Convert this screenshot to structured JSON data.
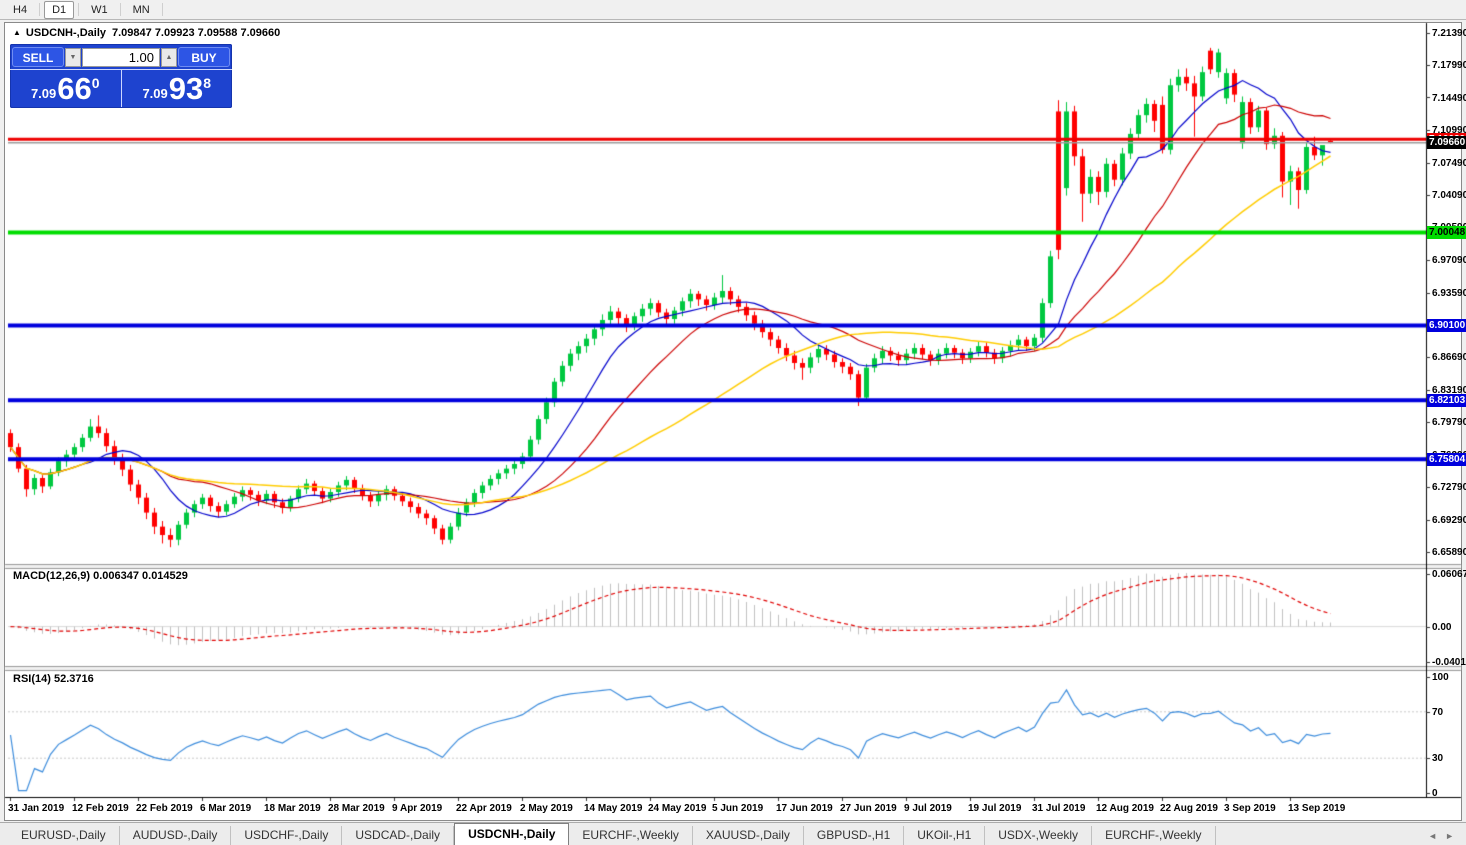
{
  "toolbar": {
    "timeframes": [
      "H4",
      "D1",
      "W1",
      "MN"
    ],
    "active": "D1"
  },
  "chart": {
    "collapse_icon": "▲",
    "title_symbol": "USDCNH-,Daily",
    "title_ohlc": "7.09847 7.09923 7.09588 7.09660"
  },
  "trade_panel": {
    "sell_label": "SELL",
    "buy_label": "BUY",
    "volume": "1.00",
    "vol_down_icon": "▼",
    "vol_up_icon": "▲",
    "sell_price": {
      "prefix": "7.09",
      "big": "66",
      "sup": "0"
    },
    "buy_price": {
      "prefix": "7.09",
      "big": "93",
      "sup": "8"
    }
  },
  "price_axis": {
    "ticks": [
      {
        "label": "7.21390",
        "price": 7.2139
      },
      {
        "label": "7.17990",
        "price": 7.1799
      },
      {
        "label": "7.14490",
        "price": 7.1449
      },
      {
        "label": "7.10990",
        "price": 7.1099
      },
      {
        "label": "7.07490",
        "price": 7.0749
      },
      {
        "label": "7.04090",
        "price": 7.0409
      },
      {
        "label": "7.00590",
        "price": 7.0059
      },
      {
        "label": "6.97090",
        "price": 6.9709
      },
      {
        "label": "6.93590",
        "price": 6.9359
      },
      {
        "label": "6.90090",
        "price": 6.9009
      },
      {
        "label": "6.86690",
        "price": 6.8669
      },
      {
        "label": "6.83190",
        "price": 6.8319
      },
      {
        "label": "6.79790",
        "price": 6.7979
      },
      {
        "label": "6.76290",
        "price": 6.7629
      },
      {
        "label": "6.72790",
        "price": 6.7279
      },
      {
        "label": "6.69290",
        "price": 6.6929
      },
      {
        "label": "6.65890",
        "price": 6.6589
      }
    ],
    "badges": [
      {
        "label": "7.10029",
        "price": 7.10029,
        "bg": "#ee0000",
        "fg": "#ffffff"
      },
      {
        "label": "7.09660",
        "price": 7.0966,
        "bg": "#000000",
        "fg": "#ffffff"
      },
      {
        "label": "7.00048",
        "price": 7.00048,
        "bg": "#00dd00",
        "fg": "#000000"
      },
      {
        "label": "6.90100",
        "price": 6.901,
        "bg": "#0000dd",
        "fg": "#ffffff"
      },
      {
        "label": "6.82103",
        "price": 6.82103,
        "bg": "#0000dd",
        "fg": "#ffffff"
      },
      {
        "label": "6.75804",
        "price": 6.75804,
        "bg": "#0000dd",
        "fg": "#ffffff"
      }
    ]
  },
  "macd_axis": {
    "items": [
      {
        "label": "0.060674",
        "value": 0.060674
      },
      {
        "label": "0.00",
        "value": 0.0
      },
      {
        "label": "-0.040152",
        "value": -0.040152
      }
    ]
  },
  "rsi_axis": {
    "items": [
      {
        "label": "100",
        "value": 100
      },
      {
        "label": "70",
        "value": 70
      },
      {
        "label": "30",
        "value": 30
      },
      {
        "label": "0",
        "value": 0
      }
    ]
  },
  "panes": {
    "macd_label": "MACD(12,26,9) 0.006347 0.014529",
    "rsi_label": "RSI(14) 52.3716"
  },
  "x_axis": {
    "labels": [
      {
        "text": "31 Jan 2019",
        "bar": 0
      },
      {
        "text": "12 Feb 2019",
        "bar": 8
      },
      {
        "text": "22 Feb 2019",
        "bar": 16
      },
      {
        "text": "6 Mar 2019",
        "bar": 24
      },
      {
        "text": "18 Mar 2019",
        "bar": 32
      },
      {
        "text": "28 Mar 2019",
        "bar": 40
      },
      {
        "text": "9 Apr 2019",
        "bar": 48
      },
      {
        "text": "22 Apr 2019",
        "bar": 56
      },
      {
        "text": "2 May 2019",
        "bar": 64
      },
      {
        "text": "14 May 2019",
        "bar": 72
      },
      {
        "text": "24 May 2019",
        "bar": 80
      },
      {
        "text": "5 Jun 2019",
        "bar": 88
      },
      {
        "text": "17 Jun 2019",
        "bar": 96
      },
      {
        "text": "27 Jun 2019",
        "bar": 104
      },
      {
        "text": "9 Jul 2019",
        "bar": 112
      },
      {
        "text": "19 Jul 2019",
        "bar": 120
      },
      {
        "text": "31 Jul 2019",
        "bar": 128
      },
      {
        "text": "12 Aug 2019",
        "bar": 136
      },
      {
        "text": "22 Aug 2019",
        "bar": 144
      },
      {
        "text": "3 Sep 2019",
        "bar": 152
      },
      {
        "text": "13 Sep 2019",
        "bar": 160
      }
    ]
  },
  "tabs": {
    "items": [
      "EURUSD-,Daily",
      "AUDUSD-,Daily",
      "USDCHF-,Daily",
      "USDCAD-,Daily",
      "USDCNH-,Daily",
      "EURCHF-,Weekly",
      "XAUUSD-,Daily",
      "GBPUSD-,H1",
      "UKOil-,H1",
      "USDX-,Weekly",
      "EURCHF-,Weekly"
    ],
    "active_index": 4,
    "nav_left": "◄",
    "nav_right": "►"
  },
  "colors": {
    "up": "#00c840",
    "down": "#ff0000",
    "bid_line": "#9c9c9c",
    "axis_line": "#000000",
    "panel_blue": "#1e43cf"
  },
  "chart_data": {
    "type": "candlestick",
    "symbol": "USDCNH",
    "timeframe": "Daily",
    "price_ylim": [
      6.6471,
      7.2235
    ],
    "macd_ylim": [
      -0.043,
      0.0651
    ],
    "rsi_ylim": [
      0,
      100
    ],
    "horizontal_lines": [
      {
        "price": 7.10029,
        "color": "#ee0000",
        "width": 3
      },
      {
        "price": 7.0966,
        "color": "#9c9c9c",
        "width": 1.5
      },
      {
        "price": 7.00048,
        "color": "#00dd00",
        "width": 4
      },
      {
        "price": 6.901,
        "color": "#0000dd",
        "width": 4
      },
      {
        "price": 6.82103,
        "color": "#0000dd",
        "width": 4
      },
      {
        "price": 6.75804,
        "color": "#0000dd",
        "width": 4
      }
    ],
    "moving_averages": [
      {
        "name": "fast",
        "period": 10,
        "color": "#0000cc",
        "lw": 1.2
      },
      {
        "name": "medium",
        "period": 20,
        "color": "#cc0000",
        "lw": 1.2
      },
      {
        "name": "slow",
        "period": 40,
        "color": "#ffcc00",
        "lw": 1.5
      }
    ],
    "macd": {
      "fast": 12,
      "slow": 26,
      "signal": 9,
      "current_macd": 0.006347,
      "current_signal": 0.014529,
      "hist_color": "#c0c0c0",
      "signal_color": "#e00000"
    },
    "rsi": {
      "period": 14,
      "current": 52.3716,
      "levels": [
        30,
        70
      ],
      "line_color": "#3c8cdc",
      "level_color": "#c8c8c8"
    },
    "candles": [
      [
        6.786,
        6.79,
        6.766,
        6.771
      ],
      [
        6.771,
        6.775,
        6.744,
        6.748
      ],
      [
        6.748,
        6.752,
        6.718,
        6.726
      ],
      [
        6.726,
        6.742,
        6.72,
        6.738
      ],
      [
        6.738,
        6.741,
        6.722,
        6.729
      ],
      [
        6.729,
        6.748,
        6.726,
        6.744
      ],
      [
        6.744,
        6.76,
        6.74,
        6.756
      ],
      [
        6.756,
        6.768,
        6.75,
        6.763
      ],
      [
        6.763,
        6.775,
        6.758,
        6.771
      ],
      [
        6.771,
        6.785,
        6.766,
        6.781
      ],
      [
        6.781,
        6.801,
        6.777,
        6.793
      ],
      [
        6.793,
        6.805,
        6.781,
        6.786
      ],
      [
        6.786,
        6.791,
        6.766,
        6.772
      ],
      [
        6.772,
        6.778,
        6.752,
        6.759
      ],
      [
        6.759,
        6.764,
        6.74,
        6.747
      ],
      [
        6.747,
        6.752,
        6.724,
        6.731
      ],
      [
        6.731,
        6.736,
        6.71,
        6.717
      ],
      [
        6.717,
        6.722,
        6.694,
        6.701
      ],
      [
        6.701,
        6.706,
        6.678,
        6.686
      ],
      [
        6.686,
        6.692,
        6.668,
        6.677
      ],
      [
        6.677,
        6.684,
        6.664,
        6.672
      ],
      [
        6.672,
        6.692,
        6.666,
        6.688
      ],
      [
        6.688,
        6.705,
        6.684,
        6.701
      ],
      [
        6.701,
        6.714,
        6.696,
        6.71
      ],
      [
        6.71,
        6.721,
        6.705,
        6.717
      ],
      [
        6.717,
        6.72,
        6.702,
        6.708
      ],
      [
        6.708,
        6.712,
        6.696,
        6.702
      ],
      [
        6.702,
        6.714,
        6.698,
        6.71
      ],
      [
        6.71,
        6.722,
        6.706,
        6.718
      ],
      [
        6.718,
        6.729,
        6.713,
        6.725
      ],
      [
        6.725,
        6.728,
        6.714,
        6.72
      ],
      [
        6.72,
        6.724,
        6.708,
        6.714
      ],
      [
        6.714,
        6.725,
        6.71,
        6.721
      ],
      [
        6.721,
        6.724,
        6.706,
        6.712
      ],
      [
        6.712,
        6.716,
        6.7,
        6.706
      ],
      [
        6.706,
        6.719,
        6.702,
        6.716
      ],
      [
        6.716,
        6.73,
        6.712,
        6.726
      ],
      [
        6.726,
        6.737,
        6.721,
        6.732
      ],
      [
        6.732,
        6.735,
        6.719,
        6.724
      ],
      [
        6.724,
        6.728,
        6.711,
        6.716
      ],
      [
        6.716,
        6.727,
        6.712,
        6.723
      ],
      [
        6.723,
        6.734,
        6.718,
        6.73
      ],
      [
        6.73,
        6.74,
        6.725,
        6.736
      ],
      [
        6.736,
        6.739,
        6.722,
        6.727
      ],
      [
        6.727,
        6.731,
        6.714,
        6.719
      ],
      [
        6.719,
        6.723,
        6.707,
        6.713
      ],
      [
        6.713,
        6.724,
        6.708,
        6.72
      ],
      [
        6.72,
        6.73,
        6.714,
        6.726
      ],
      [
        6.726,
        6.729,
        6.714,
        6.719
      ],
      [
        6.719,
        6.723,
        6.708,
        6.713
      ],
      [
        6.713,
        6.717,
        6.701,
        6.707
      ],
      [
        6.707,
        6.711,
        6.695,
        6.7
      ],
      [
        6.7,
        6.704,
        6.688,
        6.695
      ],
      [
        6.695,
        6.698,
        6.678,
        6.684
      ],
      [
        6.684,
        6.688,
        6.667,
        6.672
      ],
      [
        6.672,
        6.69,
        6.668,
        6.686
      ],
      [
        6.686,
        6.706,
        6.682,
        6.701
      ],
      [
        6.701,
        6.716,
        6.697,
        6.712
      ],
      [
        6.712,
        6.726,
        6.707,
        6.722
      ],
      [
        6.722,
        6.734,
        6.716,
        6.73
      ],
      [
        6.73,
        6.741,
        6.725,
        6.737
      ],
      [
        6.737,
        6.747,
        6.731,
        6.743
      ],
      [
        6.743,
        6.752,
        6.737,
        6.748
      ],
      [
        6.748,
        6.757,
        6.742,
        6.753
      ],
      [
        6.753,
        6.765,
        6.748,
        6.761
      ],
      [
        6.761,
        6.783,
        6.756,
        6.779
      ],
      [
        6.779,
        6.805,
        6.774,
        6.801
      ],
      [
        6.801,
        6.824,
        6.796,
        6.819
      ],
      [
        6.819,
        6.845,
        6.814,
        6.841
      ],
      [
        6.841,
        6.863,
        6.836,
        6.858
      ],
      [
        6.858,
        6.876,
        6.852,
        6.871
      ],
      [
        6.871,
        6.884,
        6.864,
        6.879
      ],
      [
        6.879,
        6.892,
        6.872,
        6.887
      ],
      [
        6.887,
        6.902,
        6.88,
        6.897
      ],
      [
        6.897,
        6.913,
        6.89,
        6.907
      ],
      [
        6.907,
        6.922,
        6.9,
        6.916
      ],
      [
        6.916,
        6.92,
        6.901,
        6.909
      ],
      [
        6.909,
        6.913,
        6.894,
        6.901
      ],
      [
        6.901,
        6.915,
        6.896,
        6.911
      ],
      [
        6.911,
        6.924,
        6.905,
        6.919
      ],
      [
        6.919,
        6.93,
        6.912,
        6.925
      ],
      [
        6.925,
        6.928,
        6.91,
        6.915
      ],
      [
        6.915,
        6.919,
        6.902,
        6.908
      ],
      [
        6.908,
        6.921,
        6.903,
        6.917
      ],
      [
        6.917,
        6.931,
        6.911,
        6.927
      ],
      [
        6.927,
        6.94,
        6.92,
        6.935
      ],
      [
        6.935,
        6.938,
        6.922,
        6.929
      ],
      [
        6.929,
        6.933,
        6.917,
        6.923
      ],
      [
        6.923,
        6.936,
        6.918,
        6.931
      ],
      [
        6.931,
        6.955,
        6.925,
        6.938
      ],
      [
        6.938,
        6.942,
        6.923,
        6.929
      ],
      [
        6.929,
        6.933,
        6.915,
        6.921
      ],
      [
        6.921,
        6.925,
        6.906,
        6.912
      ],
      [
        6.912,
        6.916,
        6.896,
        6.903
      ],
      [
        6.903,
        6.907,
        6.888,
        6.894
      ],
      [
        6.894,
        6.898,
        6.879,
        6.886
      ],
      [
        6.886,
        6.89,
        6.871,
        6.877
      ],
      [
        6.877,
        6.882,
        6.863,
        6.869
      ],
      [
        6.869,
        6.874,
        6.854,
        6.861
      ],
      [
        6.861,
        6.866,
        6.843,
        6.856
      ],
      [
        6.856,
        6.872,
        6.85,
        6.867
      ],
      [
        6.867,
        6.881,
        6.861,
        6.876
      ],
      [
        6.876,
        6.88,
        6.864,
        6.87
      ],
      [
        6.87,
        6.874,
        6.856,
        6.862
      ],
      [
        6.862,
        6.866,
        6.85,
        6.857
      ],
      [
        6.857,
        6.861,
        6.843,
        6.849
      ],
      [
        6.849,
        6.853,
        6.815,
        6.824
      ],
      [
        6.824,
        6.86,
        6.82,
        6.856
      ],
      [
        6.856,
        6.871,
        6.851,
        6.866
      ],
      [
        6.866,
        6.879,
        6.86,
        6.874
      ],
      [
        6.874,
        6.878,
        6.863,
        6.869
      ],
      [
        6.869,
        6.873,
        6.858,
        6.864
      ],
      [
        6.864,
        6.876,
        6.859,
        6.871
      ],
      [
        6.871,
        6.882,
        6.865,
        6.877
      ],
      [
        6.877,
        6.881,
        6.865,
        6.87
      ],
      [
        6.87,
        6.874,
        6.858,
        6.864
      ],
      [
        6.864,
        6.876,
        6.859,
        6.871
      ],
      [
        6.871,
        6.882,
        6.866,
        6.877
      ],
      [
        6.877,
        6.88,
        6.866,
        6.872
      ],
      [
        6.872,
        6.876,
        6.86,
        6.866
      ],
      [
        6.866,
        6.877,
        6.861,
        6.873
      ],
      [
        6.873,
        6.884,
        6.868,
        6.879
      ],
      [
        6.879,
        6.883,
        6.867,
        6.872
      ],
      [
        6.872,
        6.876,
        6.86,
        6.866
      ],
      [
        6.866,
        6.878,
        6.861,
        6.874
      ],
      [
        6.874,
        6.885,
        6.868,
        6.88
      ],
      [
        6.88,
        6.891,
        6.874,
        6.886
      ],
      [
        6.886,
        6.889,
        6.874,
        6.879
      ],
      [
        6.879,
        6.892,
        6.874,
        6.888
      ],
      [
        6.888,
        6.93,
        6.883,
        6.925
      ],
      [
        6.925,
        6.981,
        6.92,
        6.975
      ],
      [
        7.13,
        7.142,
        6.972,
        6.982
      ],
      [
        7.048,
        7.14,
        7.04,
        7.13
      ],
      [
        7.13,
        7.136,
        7.072,
        7.082
      ],
      [
        7.082,
        7.09,
        7.012,
        7.042
      ],
      [
        7.042,
        7.068,
        7.032,
        7.06
      ],
      [
        7.06,
        7.066,
        7.03,
        7.044
      ],
      [
        7.044,
        7.08,
        7.038,
        7.074
      ],
      [
        7.074,
        7.078,
        7.05,
        7.057
      ],
      [
        7.057,
        7.091,
        7.051,
        7.085
      ],
      [
        7.085,
        7.112,
        7.079,
        7.106
      ],
      [
        7.106,
        7.132,
        7.1,
        7.126
      ],
      [
        7.126,
        7.144,
        7.118,
        7.138
      ],
      [
        7.138,
        7.142,
        7.108,
        7.12
      ],
      [
        7.137,
        7.146,
        7.085,
        7.089
      ],
      [
        7.089,
        7.165,
        7.084,
        7.158
      ],
      [
        7.158,
        7.175,
        7.151,
        7.167
      ],
      [
        7.167,
        7.176,
        7.152,
        7.16
      ],
      [
        7.16,
        7.168,
        7.103,
        7.146
      ],
      [
        7.146,
        7.178,
        7.141,
        7.172
      ],
      [
        7.195,
        7.198,
        7.17,
        7.175
      ],
      [
        7.172,
        7.197,
        7.166,
        7.193
      ],
      [
        7.144,
        7.176,
        7.138,
        7.171
      ],
      [
        7.171,
        7.175,
        7.14,
        7.148
      ],
      [
        7.096,
        7.146,
        7.09,
        7.14
      ],
      [
        7.14,
        7.144,
        7.106,
        7.113
      ],
      [
        7.113,
        7.136,
        7.108,
        7.131
      ],
      [
        7.131,
        7.134,
        7.089,
        7.095
      ],
      [
        7.095,
        7.112,
        7.09,
        7.104
      ],
      [
        7.104,
        7.108,
        7.038,
        7.055
      ],
      [
        7.055,
        7.072,
        7.03,
        7.066
      ],
      [
        7.066,
        7.07,
        7.026,
        7.046
      ],
      [
        7.046,
        7.097,
        7.042,
        7.092
      ],
      [
        7.092,
        7.103,
        7.078,
        7.083
      ],
      [
        7.083,
        7.092,
        7.072,
        7.094
      ],
      [
        7.0985,
        7.0992,
        7.0959,
        7.0966
      ]
    ]
  }
}
